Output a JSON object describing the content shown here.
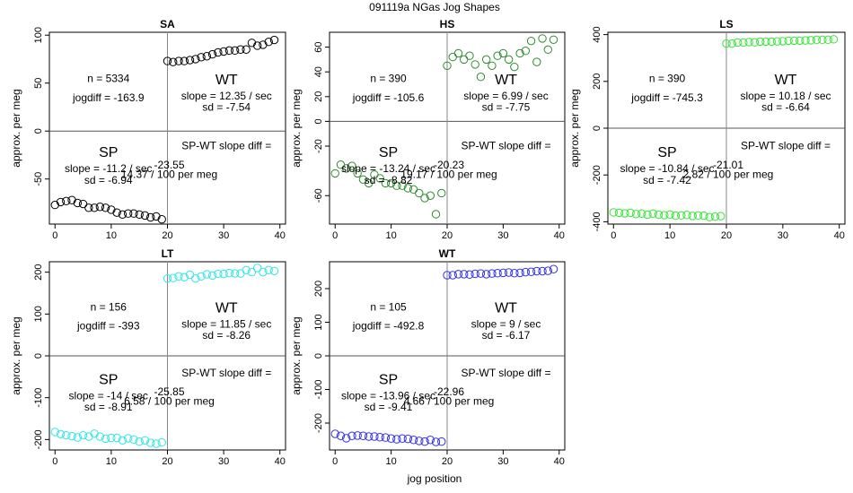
{
  "figure_title": "091119a    NGas Jog Shapes",
  "xlabel": "jog position",
  "ylabel": "approx. per meg",
  "chart_data": [
    {
      "type": "scatter",
      "title": "SA",
      "color": "#000000",
      "xlim": [
        -1,
        41
      ],
      "ylim": [
        -97,
        103
      ],
      "xticks": [
        0,
        10,
        20,
        30,
        40
      ],
      "yticks": [
        -50,
        0,
        50,
        100
      ],
      "ytick_labels": [
        "-50",
        "0",
        "50",
        "100"
      ],
      "stats": {
        "n": "n = 5334",
        "jogdiff": "jogdiff = -163.9"
      },
      "wt": {
        "label": "WT",
        "slope": "slope = 12.35 / sec",
        "sd": "sd = -7.54"
      },
      "sp": {
        "label": "SP",
        "slope": "slope = -11.2 / sec",
        "sd": "sd = -6.94"
      },
      "diff": {
        "label": "SP-WT slope diff =",
        "value": "-23.55",
        "per": "14.37 / 100 per meg"
      },
      "sp_points": {
        "x": [
          0,
          1,
          2,
          3,
          4,
          5,
          6,
          7,
          8,
          9,
          10,
          11,
          12,
          13,
          14,
          15,
          16,
          17,
          18,
          19
        ],
        "y": [
          -77,
          -74,
          -73,
          -72,
          -75,
          -76,
          -80,
          -80,
          -79,
          -80,
          -82,
          -85,
          -87,
          -86,
          -86,
          -87,
          -88,
          -90,
          -89,
          -92
        ]
      },
      "wt_points": {
        "x": [
          20,
          21,
          22,
          23,
          24,
          25,
          26,
          27,
          28,
          29,
          30,
          31,
          32,
          33,
          34,
          35,
          36,
          37,
          38,
          39
        ],
        "y": [
          73,
          72,
          73,
          73,
          74,
          75,
          77,
          78,
          80,
          82,
          83,
          84,
          84,
          85,
          85,
          92,
          89,
          90,
          93,
          95
        ]
      }
    },
    {
      "type": "scatter",
      "title": "HS",
      "color": "#2e8b2e",
      "xlim": [
        -1,
        41
      ],
      "ylim": [
        -83,
        72
      ],
      "xticks": [
        0,
        10,
        20,
        30,
        40
      ],
      "yticks": [
        -60,
        -20,
        0,
        20,
        40,
        60
      ],
      "ytick_labels": [
        "-60",
        "-20",
        "0",
        "20",
        "40",
        "60"
      ],
      "stats": {
        "n": "n = 390",
        "jogdiff": "jogdiff = -105.6"
      },
      "wt": {
        "label": "WT",
        "slope": "slope = 6.99 / sec",
        "sd": "sd = -7.75"
      },
      "sp": {
        "label": "SP",
        "slope": "slope = -13.24 / sec",
        "sd": "sd = -8.82"
      },
      "diff": {
        "label": "SP-WT slope diff =",
        "value": "-20.23",
        "per": "19.17 / 100 per meg"
      },
      "sp_points": {
        "x": [
          0,
          1,
          2,
          3,
          4,
          5,
          6,
          7,
          8,
          9,
          10,
          11,
          12,
          13,
          14,
          15,
          16,
          17,
          18,
          19
        ],
        "y": [
          -42,
          -35,
          -38,
          -36,
          -42,
          -47,
          -50,
          -43,
          -46,
          -50,
          -50,
          -52,
          -52,
          -54,
          -55,
          -58,
          -62,
          -60,
          -75,
          -58
        ]
      },
      "wt_points": {
        "x": [
          20,
          21,
          22,
          23,
          24,
          25,
          26,
          27,
          28,
          29,
          30,
          31,
          32,
          33,
          34,
          35,
          36,
          37,
          38,
          39
        ],
        "y": [
          45,
          52,
          55,
          50,
          53,
          46,
          36,
          50,
          45,
          53,
          55,
          50,
          44,
          55,
          57,
          65,
          48,
          67,
          58,
          66
        ]
      }
    },
    {
      "type": "scatter",
      "title": "LS",
      "color": "#33e633",
      "xlim": [
        -1,
        41
      ],
      "ylim": [
        -410,
        410
      ],
      "xticks": [
        0,
        10,
        20,
        30,
        40
      ],
      "yticks": [
        -400,
        -200,
        0,
        200,
        400
      ],
      "ytick_labels": [
        "-400",
        "-200",
        "0",
        "200",
        "400"
      ],
      "stats": {
        "n": "n = 390",
        "jogdiff": "jogdiff = -745.3"
      },
      "wt": {
        "label": "WT",
        "slope": "slope = 10.18 / sec",
        "sd": "sd = -6.64"
      },
      "sp": {
        "label": "SP",
        "slope": "slope = -10.84 / sec",
        "sd": "sd = -7.42"
      },
      "diff": {
        "label": "SP-WT slope diff =",
        "value": "-21.01",
        "per": "2.82 / 100 per meg"
      },
      "sp_points": {
        "x": [
          0,
          1,
          2,
          3,
          4,
          5,
          6,
          7,
          8,
          9,
          10,
          11,
          12,
          13,
          14,
          15,
          16,
          17,
          18,
          19
        ],
        "y": [
          -360,
          -362,
          -364,
          -362,
          -367,
          -365,
          -370,
          -365,
          -370,
          -372,
          -369,
          -374,
          -373,
          -371,
          -375,
          -373,
          -374,
          -380,
          -378,
          -376
        ]
      },
      "wt_points": {
        "x": [
          20,
          21,
          22,
          23,
          24,
          25,
          26,
          27,
          28,
          29,
          30,
          31,
          32,
          33,
          34,
          35,
          36,
          37,
          38,
          39
        ],
        "y": [
          362,
          362,
          366,
          366,
          368,
          367,
          370,
          370,
          370,
          371,
          372,
          374,
          374,
          374,
          375,
          376,
          378,
          378,
          378,
          380
        ]
      }
    },
    {
      "type": "scatter",
      "title": "LT",
      "color": "#33e6e6",
      "xlim": [
        -1,
        41
      ],
      "ylim": [
        -225,
        225
      ],
      "xticks": [
        0,
        10,
        20,
        30,
        40
      ],
      "yticks": [
        -200,
        -100,
        0,
        100,
        200
      ],
      "ytick_labels": [
        "-200",
        "-100",
        "0",
        "100",
        "200"
      ],
      "stats": {
        "n": "n = 156",
        "jogdiff": "jogdiff = -393"
      },
      "wt": {
        "label": "WT",
        "slope": "slope = 11.85 / sec",
        "sd": "sd = -8.26"
      },
      "sp": {
        "label": "SP",
        "slope": "slope = -14 / sec",
        "sd": "sd = -8.91"
      },
      "diff": {
        "label": "SP-WT slope diff =",
        "value": "-25.85",
        "per": "6.58 / 100 per meg"
      },
      "sp_points": {
        "x": [
          0,
          1,
          2,
          3,
          4,
          5,
          6,
          7,
          8,
          9,
          10,
          11,
          12,
          13,
          14,
          15,
          16,
          17,
          18,
          19
        ],
        "y": [
          -182,
          -187,
          -190,
          -192,
          -195,
          -190,
          -193,
          -186,
          -193,
          -198,
          -196,
          -196,
          -202,
          -197,
          -200,
          -205,
          -202,
          -208,
          -210,
          -207
        ]
      },
      "wt_points": {
        "x": [
          20,
          21,
          22,
          23,
          24,
          25,
          26,
          27,
          28,
          29,
          30,
          31,
          32,
          33,
          34,
          35,
          36,
          37,
          38,
          39
        ],
        "y": [
          185,
          186,
          190,
          188,
          194,
          185,
          190,
          195,
          192,
          196,
          196,
          198,
          197,
          197,
          205,
          200,
          210,
          200,
          205,
          203
        ]
      }
    },
    {
      "type": "scatter",
      "title": "WT",
      "color": "#3333e6",
      "xlim": [
        -1,
        41
      ],
      "ylim": [
        -280,
        280
      ],
      "xticks": [
        0,
        10,
        20,
        30,
        40
      ],
      "yticks": [
        -200,
        -100,
        0,
        100,
        200
      ],
      "ytick_labels": [
        "-200",
        "-100",
        "0",
        "100",
        "200"
      ],
      "stats": {
        "n": "n = 105",
        "jogdiff": "jogdiff = -492.8"
      },
      "wt": {
        "label": "WT",
        "slope": "slope = 9 / sec",
        "sd": "sd = -6.17"
      },
      "sp": {
        "label": "SP",
        "slope": "slope = -13.96 / sec",
        "sd": "sd = -9.41"
      },
      "diff": {
        "label": "SP-WT slope diff =",
        "value": "-22.96",
        "per": "4.66 / 100 per meg"
      },
      "sp_points": {
        "x": [
          0,
          1,
          2,
          3,
          4,
          5,
          6,
          7,
          8,
          9,
          10,
          11,
          12,
          13,
          14,
          15,
          16,
          17,
          18,
          19
        ],
        "y": [
          -232,
          -238,
          -245,
          -238,
          -237,
          -238,
          -240,
          -240,
          -242,
          -243,
          -246,
          -248,
          -246,
          -247,
          -250,
          -253,
          -255,
          -250,
          -256,
          -255
        ]
      },
      "wt_points": {
        "x": [
          20,
          21,
          22,
          23,
          24,
          25,
          26,
          27,
          28,
          29,
          30,
          31,
          32,
          33,
          34,
          35,
          36,
          37,
          38,
          39
        ],
        "y": [
          240,
          240,
          243,
          243,
          242,
          244,
          245,
          243,
          245,
          246,
          247,
          248,
          246,
          247,
          249,
          250,
          252,
          252,
          253,
          258
        ]
      }
    }
  ]
}
